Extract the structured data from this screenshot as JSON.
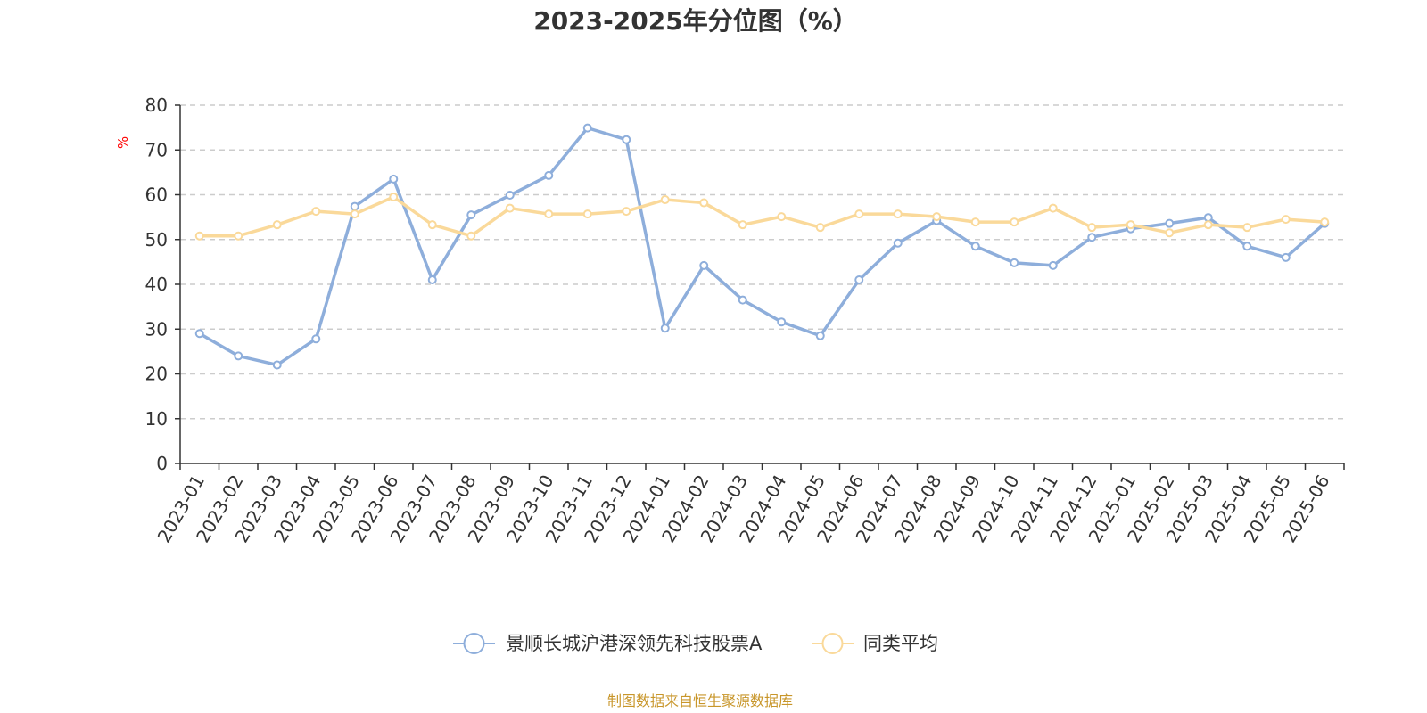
{
  "chart_data": {
    "type": "line",
    "title": "2023-2025年分位图（%）",
    "ylabel": "%",
    "xlabel": "",
    "ylim": [
      0,
      80
    ],
    "yticks": [
      "0",
      "10",
      "20",
      "30",
      "40",
      "50",
      "60",
      "70",
      "80"
    ],
    "grid": true,
    "legend_position": "bottom-center",
    "categories": [
      "2023-01",
      "2023-02",
      "2023-03",
      "2023-04",
      "2023-05",
      "2023-06",
      "2023-07",
      "2023-08",
      "2023-09",
      "2023-10",
      "2023-11",
      "2023-12",
      "2024-01",
      "2024-02",
      "2024-03",
      "2024-04",
      "2024-05",
      "2024-06",
      "2024-07",
      "2024-08",
      "2024-09",
      "2024-10",
      "2024-11",
      "2024-12",
      "2025-01",
      "2025-02",
      "2025-03",
      "2025-04",
      "2025-05",
      "2025-06"
    ],
    "series": [
      {
        "name": "景顺长城沪港深领先科技股票A",
        "color": "#8eaedb",
        "values": [
          29.0,
          24.0,
          22.0,
          27.8,
          57.4,
          63.5,
          41.0,
          55.5,
          59.9,
          64.3,
          74.9,
          72.3,
          30.2,
          44.2,
          36.5,
          31.6,
          28.5,
          41.0,
          49.2,
          54.2,
          48.5,
          44.8,
          44.2,
          50.5,
          52.4,
          53.6,
          54.9,
          48.5,
          46.0,
          53.6
        ]
      },
      {
        "name": "同类平均",
        "color": "#fad99a",
        "values": [
          50.8,
          50.8,
          53.3,
          56.3,
          55.7,
          59.5,
          53.3,
          50.8,
          57.0,
          55.7,
          55.7,
          56.3,
          58.9,
          58.2,
          53.3,
          55.1,
          52.7,
          55.7,
          55.7,
          55.1,
          53.9,
          53.9,
          57.0,
          52.7,
          53.3,
          51.5,
          53.3,
          52.7,
          54.5,
          53.9
        ]
      }
    ]
  },
  "footer": {
    "source": "制图数据来自恒生聚源数据库"
  }
}
